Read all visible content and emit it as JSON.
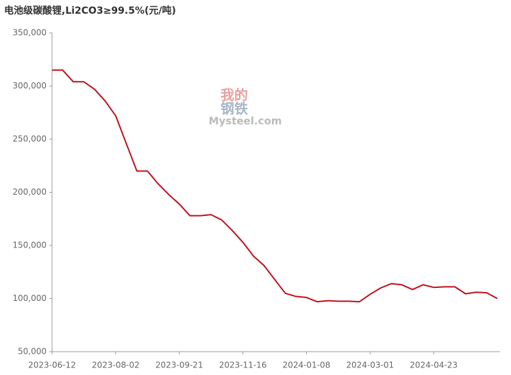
{
  "chart_data": {
    "type": "line",
    "title": "电池级碳酸锂,Li2CO3≥99.5%(元/吨)",
    "watermark": [
      "我的",
      "钢铁",
      "Mysteel.com"
    ],
    "categories": [
      "2023-06-12",
      null,
      null,
      null,
      null,
      null,
      "2023-08-02",
      null,
      null,
      null,
      null,
      null,
      "2023-09-21",
      null,
      null,
      null,
      null,
      null,
      "2023-11-16",
      null,
      null,
      null,
      null,
      null,
      "2024-01-08",
      null,
      null,
      null,
      null,
      null,
      "2024-03-01",
      null,
      null,
      null,
      null,
      null,
      "2024-04-23",
      null,
      null,
      null,
      null,
      null,
      null
    ],
    "series": [
      {
        "name": "电池级碳酸锂",
        "color": "#c00f1a",
        "values": [
          315000,
          315000,
          304000,
          304000,
          297000,
          286000,
          272000,
          246000,
          220000,
          220000,
          208000,
          198000,
          189000,
          178000,
          178000,
          179000,
          174000,
          164000,
          153000,
          140000,
          131000,
          118000,
          105000,
          102000,
          101000,
          97000,
          98000,
          97500,
          97500,
          97000,
          104000,
          110000,
          114000,
          113000,
          108500,
          113000,
          110500,
          111000,
          111000,
          104500,
          106000,
          105500,
          100000
        ]
      }
    ],
    "ylim": [
      50000,
      350000
    ],
    "yticks": [
      {
        "value": 50000,
        "label": "50,000"
      },
      {
        "value": 100000,
        "label": "100,000"
      },
      {
        "value": 150000,
        "label": "150,000"
      },
      {
        "value": 200000,
        "label": "200,000"
      },
      {
        "value": 250000,
        "label": "250,000"
      },
      {
        "value": 300000,
        "label": "300,000"
      },
      {
        "value": 350000,
        "label": "350,000"
      }
    ],
    "grid": false
  }
}
